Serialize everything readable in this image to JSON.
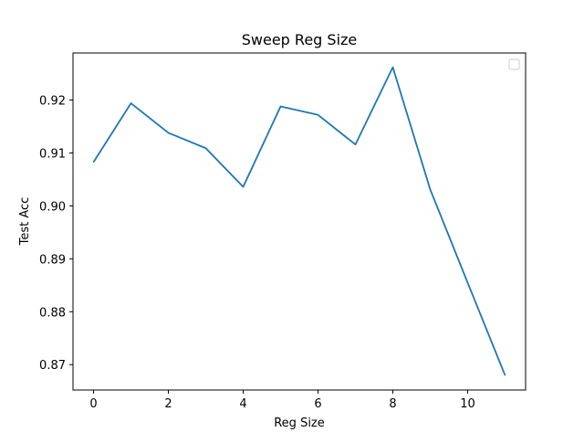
{
  "chart_data": {
    "type": "line",
    "title": "Sweep Reg Size",
    "xlabel": "Reg Size",
    "ylabel": "Test Acc",
    "xlim": [
      -0.55,
      11.55
    ],
    "ylim": [
      0.8652,
      0.9289
    ],
    "xticks": [
      0,
      2,
      4,
      6,
      8,
      10
    ],
    "xtick_labels": [
      "0",
      "2",
      "4",
      "6",
      "8",
      "10"
    ],
    "yticks": [
      0.87,
      0.88,
      0.89,
      0.9,
      0.91,
      0.92
    ],
    "ytick_labels": [
      "0.87",
      "0.88",
      "0.89",
      "0.90",
      "0.91",
      "0.92"
    ],
    "grid": false,
    "legend": "top-right (empty)",
    "series": [
      {
        "color": "#1f77b4",
        "x": [
          0,
          1,
          2,
          3,
          4,
          5,
          6,
          7,
          8,
          9,
          10,
          11
        ],
        "values": [
          0.9083,
          0.9194,
          0.9138,
          0.9109,
          0.9036,
          0.9188,
          0.9172,
          0.9116,
          0.9262,
          0.9031,
          0.8855,
          0.868
        ]
      }
    ]
  }
}
